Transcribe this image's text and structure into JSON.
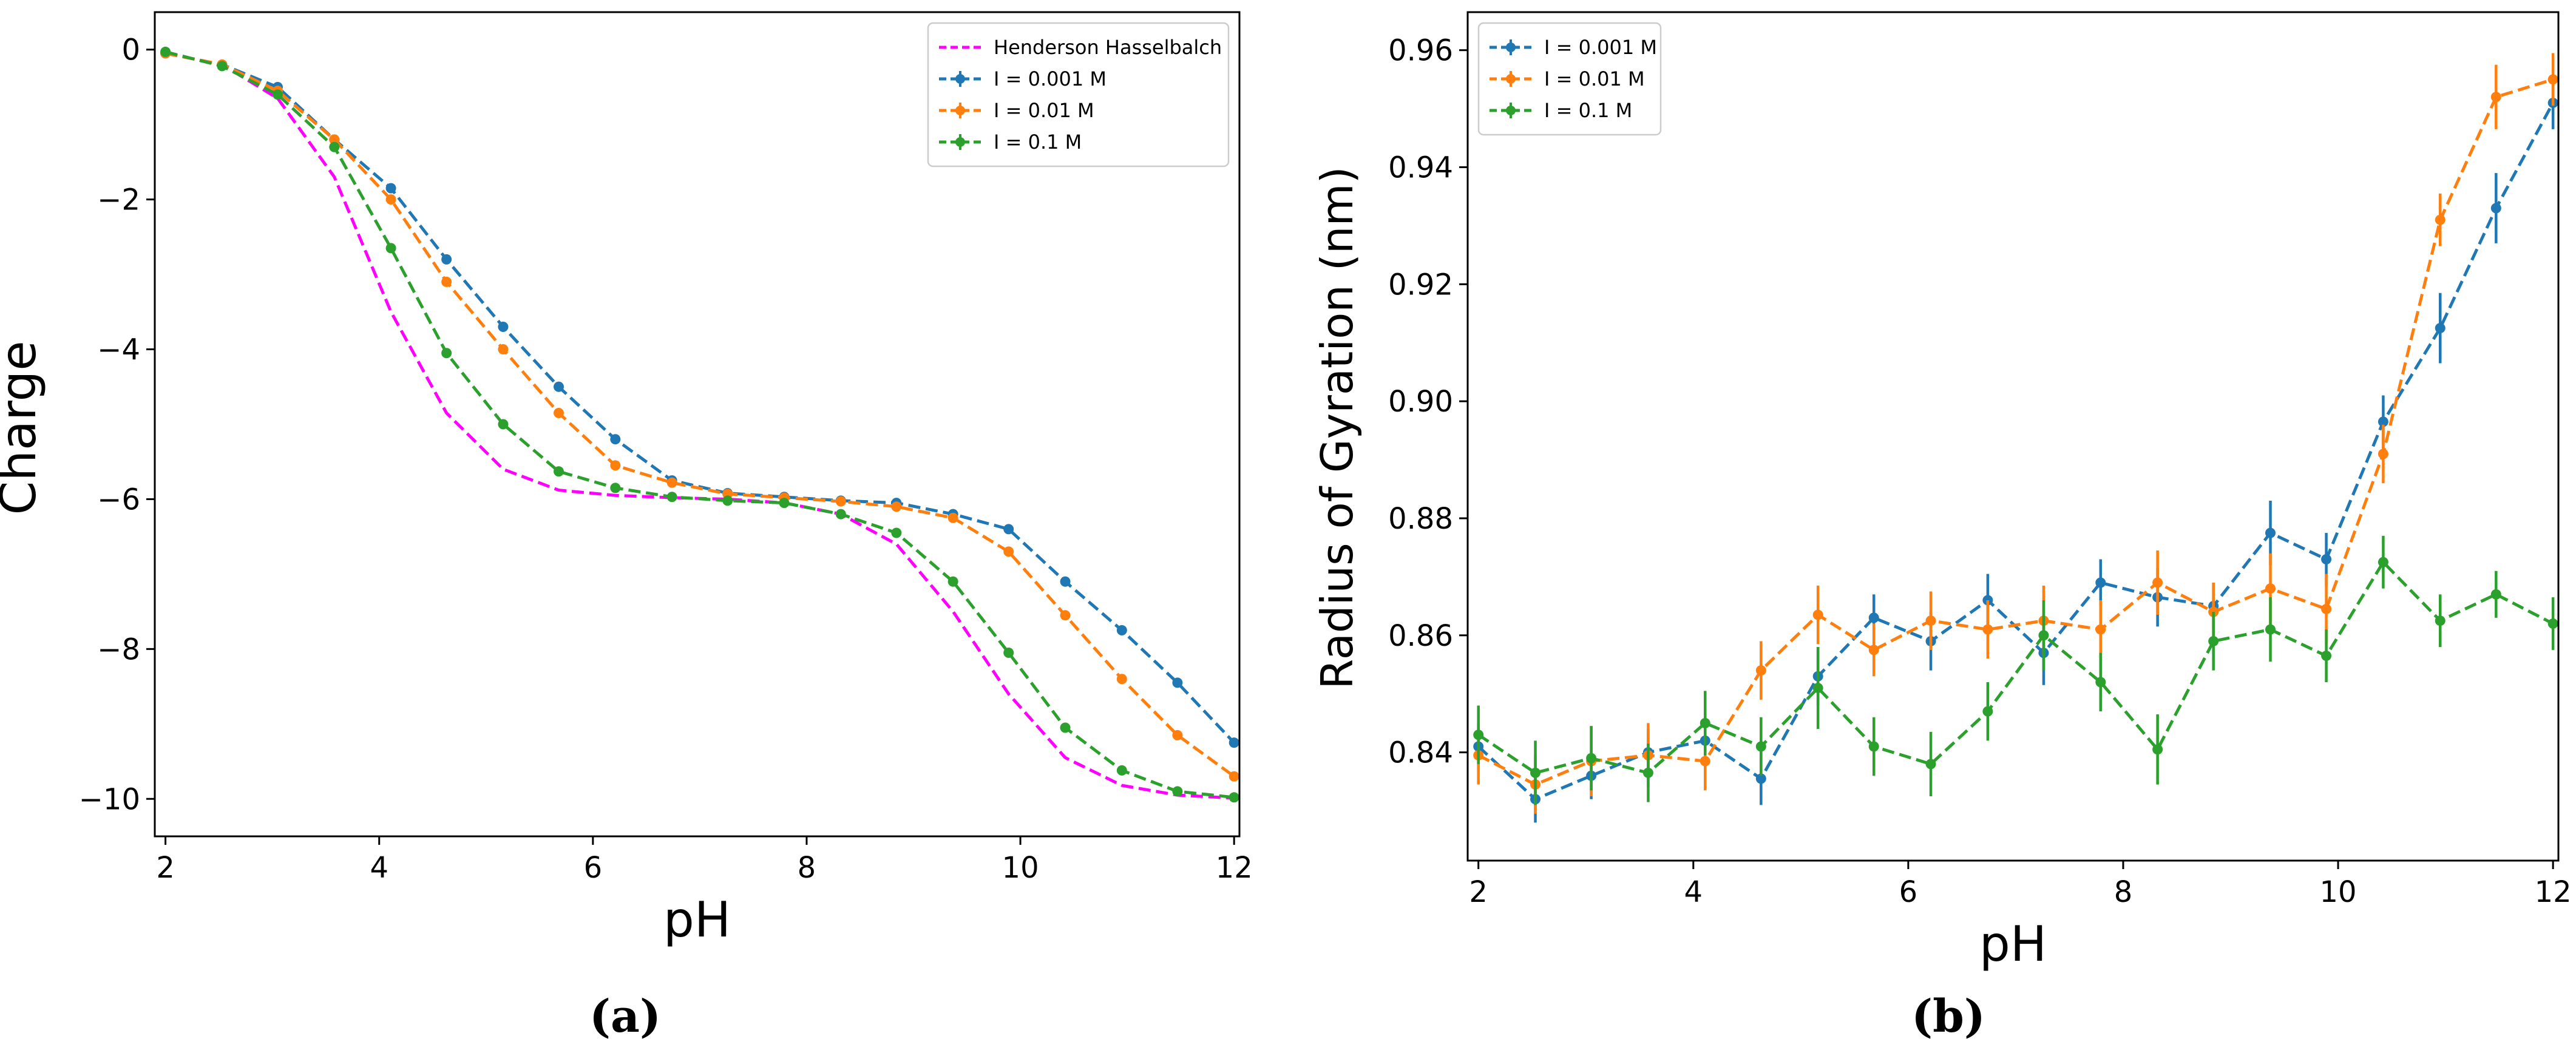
{
  "chart_data": [
    {
      "type": "line",
      "panel_label": "(a)",
      "xlabel": "pH",
      "ylabel": "Charge",
      "xlim": [
        1.9,
        12.05
      ],
      "ylim": [
        -10.5,
        0.5
      ],
      "xticks": [
        2,
        4,
        6,
        8,
        10,
        12
      ],
      "yticks": [
        0,
        -2,
        -4,
        -6,
        -8,
        -10
      ],
      "ytick_labels": [
        "0",
        "−2",
        "−4",
        "−6",
        "−8",
        "−10"
      ],
      "grid": false,
      "legend_position": "top-right",
      "x": [
        2.0,
        2.53,
        3.05,
        3.58,
        4.11,
        4.63,
        5.16,
        5.68,
        6.21,
        6.74,
        7.26,
        7.79,
        8.32,
        8.84,
        9.37,
        9.89,
        10.42,
        10.95,
        11.47,
        12.0
      ],
      "series": [
        {
          "name": "Henderson Hasselbalch",
          "color": "#ff00ff",
          "markers": false,
          "values": [
            -0.05,
            -0.2,
            -0.65,
            -1.7,
            -3.5,
            -4.85,
            -5.6,
            -5.88,
            -5.95,
            -5.98,
            -6.0,
            -6.05,
            -6.2,
            -6.6,
            -7.5,
            -8.6,
            -9.45,
            -9.82,
            -9.95,
            -9.99
          ]
        },
        {
          "name": "I = 0.001 M",
          "color": "#1f77b4",
          "markers": true,
          "values": [
            -0.05,
            -0.2,
            -0.5,
            -1.2,
            -1.85,
            -2.8,
            -3.7,
            -4.5,
            -5.2,
            -5.75,
            -5.92,
            -5.97,
            -6.02,
            -6.05,
            -6.2,
            -6.4,
            -7.1,
            -7.75,
            -8.45,
            -9.25
          ]
        },
        {
          "name": "I = 0.01 M",
          "color": "#ff7f0e",
          "markers": true,
          "values": [
            -0.05,
            -0.2,
            -0.55,
            -1.2,
            -2.0,
            -3.1,
            -4.0,
            -4.85,
            -5.55,
            -5.78,
            -5.93,
            -5.98,
            -6.03,
            -6.1,
            -6.25,
            -6.7,
            -7.55,
            -8.4,
            -9.15,
            -9.7
          ]
        },
        {
          "name": "I = 0.1 M",
          "color": "#2ca02c",
          "markers": true,
          "values": [
            -0.03,
            -0.22,
            -0.6,
            -1.3,
            -2.65,
            -4.05,
            -5.0,
            -5.63,
            -5.85,
            -5.97,
            -6.02,
            -6.05,
            -6.2,
            -6.45,
            -7.1,
            -8.05,
            -9.05,
            -9.62,
            -9.9,
            -9.98
          ]
        }
      ]
    },
    {
      "type": "line",
      "panel_label": "(b)",
      "xlabel": "pH",
      "ylabel": "Radius of Gyration (nm)",
      "xlim": [
        1.9,
        12.05
      ],
      "ylim": [
        0.8215,
        0.9665
      ],
      "xticks": [
        2,
        4,
        6,
        8,
        10,
        12
      ],
      "yticks": [
        0.84,
        0.86,
        0.88,
        0.9,
        0.92,
        0.94,
        0.96
      ],
      "ytick_labels": [
        "0.84",
        "0.86",
        "0.88",
        "0.90",
        "0.92",
        "0.94",
        "0.96"
      ],
      "grid": false,
      "legend_position": "top-left",
      "error_bars": true,
      "x": [
        2.0,
        2.53,
        3.05,
        3.58,
        4.11,
        4.63,
        5.16,
        5.68,
        6.21,
        6.74,
        7.26,
        7.79,
        8.32,
        8.84,
        9.37,
        9.89,
        10.42,
        10.95,
        11.47,
        12.0
      ],
      "series": [
        {
          "name": "I = 0.001 M",
          "color": "#1f77b4",
          "values": [
            0.841,
            0.832,
            0.836,
            0.84,
            0.842,
            0.8355,
            0.853,
            0.863,
            0.859,
            0.866,
            0.857,
            0.869,
            0.8665,
            0.865,
            0.8775,
            0.873,
            0.8965,
            0.9125,
            0.933,
            0.951
          ],
          "errors": [
            0.004,
            0.004,
            0.004,
            0.004,
            0.004,
            0.0045,
            0.005,
            0.004,
            0.005,
            0.0045,
            0.0055,
            0.004,
            0.005,
            0.004,
            0.0055,
            0.0045,
            0.0045,
            0.006,
            0.006,
            0.0045
          ]
        },
        {
          "name": "I = 0.01 M",
          "color": "#ff7f0e",
          "values": [
            0.8395,
            0.8345,
            0.8385,
            0.8395,
            0.8385,
            0.854,
            0.8635,
            0.8575,
            0.8625,
            0.861,
            0.8625,
            0.861,
            0.869,
            0.864,
            0.868,
            0.8645,
            0.891,
            0.931,
            0.952,
            0.955
          ],
          "errors": [
            0.005,
            0.005,
            0.006,
            0.0055,
            0.005,
            0.005,
            0.005,
            0.0045,
            0.005,
            0.005,
            0.006,
            0.005,
            0.0055,
            0.005,
            0.006,
            0.006,
            0.005,
            0.0045,
            0.0055,
            0.0045
          ]
        },
        {
          "name": "I = 0.1 M",
          "color": "#2ca02c",
          "values": [
            0.843,
            0.8365,
            0.839,
            0.8365,
            0.845,
            0.841,
            0.851,
            0.841,
            0.838,
            0.847,
            0.86,
            0.852,
            0.8405,
            0.859,
            0.861,
            0.8565,
            0.8725,
            0.8625,
            0.867,
            0.862
          ],
          "errors": [
            0.005,
            0.0055,
            0.0055,
            0.005,
            0.0055,
            0.005,
            0.007,
            0.005,
            0.0055,
            0.005,
            0.006,
            0.005,
            0.006,
            0.005,
            0.0055,
            0.0045,
            0.0045,
            0.0045,
            0.004,
            0.0045
          ]
        }
      ]
    }
  ]
}
